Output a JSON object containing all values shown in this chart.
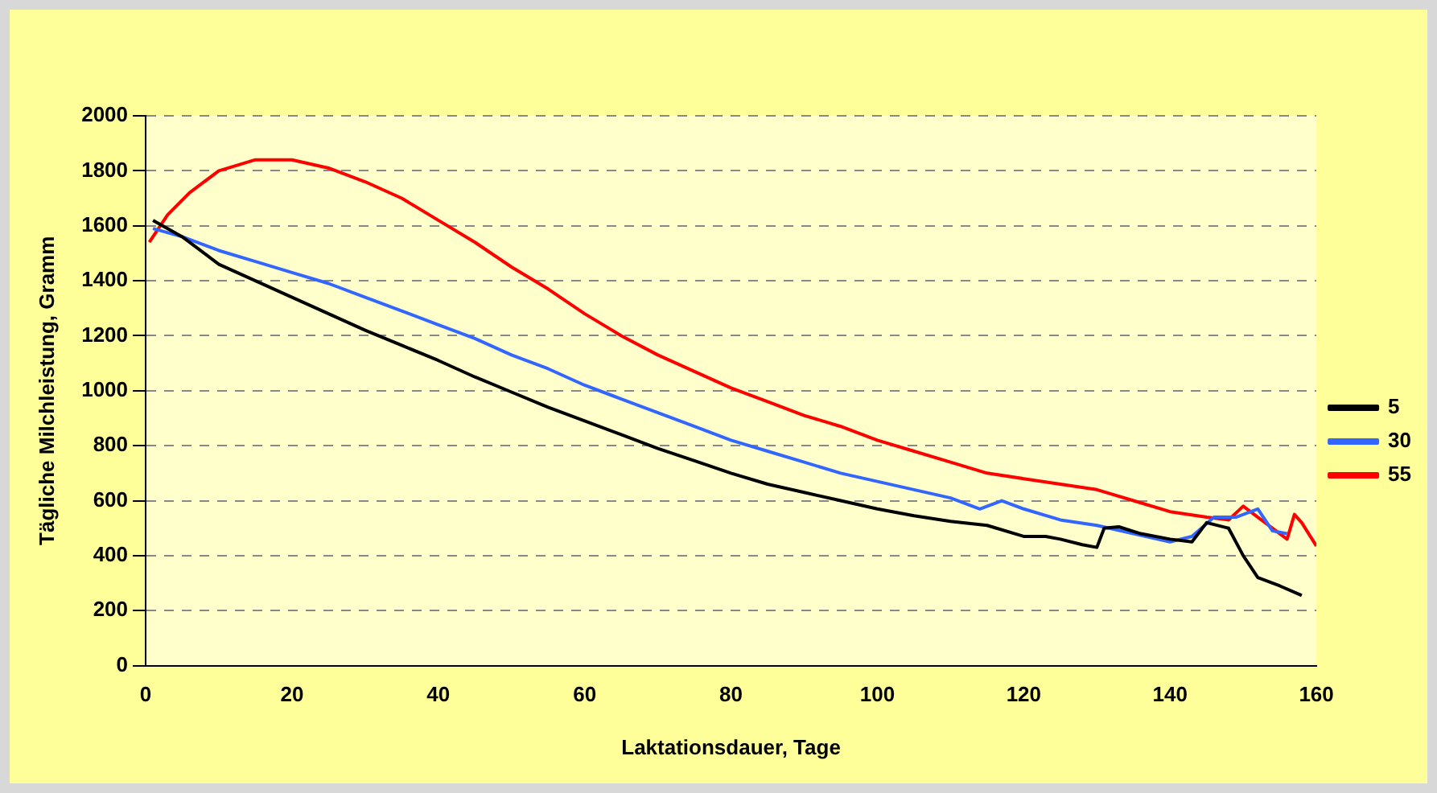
{
  "chart_data": {
    "type": "line",
    "xlabel": "Laktationsdauer, Tage",
    "ylabel": "Tägliche Milchleistung, Gramm",
    "xlim": [
      0,
      160
    ],
    "xticks": [
      0,
      20,
      40,
      60,
      80,
      100,
      120,
      140,
      160
    ],
    "ylim": [
      0,
      2000
    ],
    "yticks": [
      0,
      200,
      400,
      600,
      800,
      1000,
      1200,
      1400,
      1600,
      1800,
      2000
    ],
    "grid": "y",
    "legend": "right",
    "marker": "none",
    "line_style": "solid",
    "series": [
      {
        "name": "5",
        "color": "#000000",
        "x": [
          1,
          5,
          10,
          15,
          20,
          25,
          30,
          35,
          40,
          45,
          50,
          55,
          60,
          65,
          70,
          75,
          80,
          85,
          90,
          95,
          100,
          105,
          110,
          115,
          120,
          123,
          125,
          128,
          130,
          131,
          133,
          136,
          140,
          143,
          145,
          148,
          150,
          152,
          155,
          158
        ],
        "values": [
          1620,
          1560,
          1460,
          1400,
          1340,
          1280,
          1220,
          1165,
          1110,
          1050,
          995,
          940,
          890,
          840,
          790,
          745,
          700,
          660,
          630,
          600,
          570,
          545,
          525,
          510,
          470,
          470,
          460,
          440,
          430,
          500,
          505,
          480,
          460,
          450,
          520,
          500,
          400,
          320,
          290,
          255
        ]
      },
      {
        "name": "30",
        "color": "#3366ff",
        "x": [
          1,
          5,
          10,
          15,
          20,
          25,
          30,
          35,
          40,
          45,
          50,
          55,
          60,
          65,
          70,
          75,
          80,
          85,
          90,
          95,
          100,
          105,
          110,
          114,
          117,
          120,
          125,
          130,
          135,
          140,
          143,
          146,
          149,
          152,
          154,
          156
        ],
        "values": [
          1590,
          1560,
          1510,
          1470,
          1430,
          1390,
          1340,
          1290,
          1240,
          1190,
          1130,
          1080,
          1020,
          970,
          920,
          870,
          820,
          780,
          740,
          700,
          670,
          640,
          610,
          570,
          600,
          570,
          530,
          510,
          480,
          450,
          470,
          540,
          540,
          570,
          490,
          480
        ]
      },
      {
        "name": "55",
        "color": "#ff0000",
        "x": [
          0.5,
          3,
          6,
          10,
          15,
          20,
          25,
          30,
          35,
          40,
          45,
          50,
          55,
          60,
          65,
          70,
          75,
          80,
          85,
          90,
          95,
          100,
          105,
          110,
          115,
          120,
          125,
          130,
          135,
          140,
          145,
          148,
          150,
          152,
          155,
          156,
          157,
          158,
          160
        ],
        "values": [
          1540,
          1640,
          1720,
          1800,
          1840,
          1840,
          1810,
          1760,
          1700,
          1620,
          1540,
          1450,
          1370,
          1280,
          1200,
          1130,
          1070,
          1010,
          960,
          910,
          870,
          820,
          780,
          740,
          700,
          680,
          660,
          640,
          600,
          560,
          540,
          530,
          580,
          540,
          480,
          460,
          550,
          520,
          435
        ]
      }
    ]
  }
}
